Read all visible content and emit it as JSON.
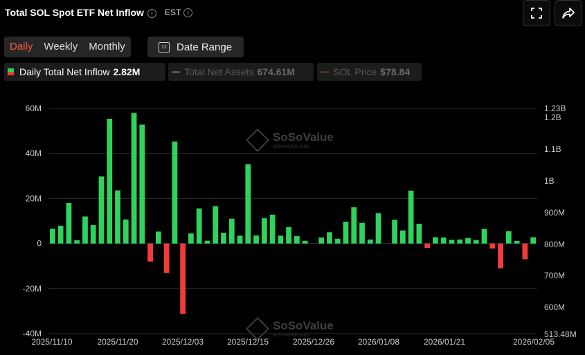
{
  "header": {
    "title": "Total SOL Spot ETF Net Inflow",
    "timezone": "EST",
    "info_glyph": "i"
  },
  "toolbar": {
    "tabs": [
      {
        "label": "Daily",
        "active": true
      },
      {
        "label": "Weekly",
        "active": false
      },
      {
        "label": "Monthly",
        "active": false
      }
    ],
    "date_range_label": "Date Range",
    "calendar_day": "12"
  },
  "legend": {
    "inflow": {
      "label": "Daily Total Net Inflow",
      "value": "2.82M"
    },
    "assets": {
      "label": "Total Net Assets",
      "value": "674.61M"
    },
    "price": {
      "label": "SOL Price",
      "value": "$78.84"
    }
  },
  "watermark": {
    "brand": "SoSoValue",
    "site": "sosovalue.com"
  },
  "colors": {
    "positive": "#2fd35b",
    "negative": "#f23b3b",
    "accent": "#f25b46",
    "grid": "#2b2b2b"
  },
  "chart_data": {
    "type": "bar",
    "left_axis": {
      "ticks": [
        "60M",
        "40M",
        "20M",
        "0",
        "-20M",
        "-40M"
      ],
      "range": [
        -40000000,
        60000000
      ]
    },
    "right_axis": {
      "ticks": [
        "1.23B",
        "1.2B",
        "1.1B",
        "1B",
        "900M",
        "800M",
        "700M",
        "600M",
        "513.48M"
      ]
    },
    "x_tick_labels": [
      "2025/11/10",
      "2025/11/20",
      "2025/12/03",
      "2025/12/15",
      "2025/12/26",
      "2026/01/08",
      "2026/01/21",
      "2026/02/05"
    ],
    "series": [
      {
        "name": "Daily Total Net Inflow",
        "values": [
          6.6,
          7.9,
          18,
          1.5,
          12,
          8.2,
          29.8,
          55.4,
          23.6,
          10.7,
          58,
          52.8,
          -8,
          5.3,
          -13,
          45.3,
          -31.3,
          4.5,
          15.6,
          1.2,
          16.6,
          4.8,
          11,
          3.5,
          35.2,
          3.6,
          11.2,
          12.8,
          3.5,
          7.3,
          3.3,
          1.2,
          null,
          2.7,
          5,
          2.1,
          9.7,
          16.1,
          9.2,
          1.8,
          13.5,
          null,
          10.6,
          5.8,
          23.5,
          8.8,
          -2,
          2.8,
          2.7,
          1.7,
          1.8,
          2.5,
          1.6,
          6.5,
          -2.2,
          -11,
          5.5,
          1.1,
          -7,
          2.8
        ],
        "unit": "M"
      }
    ]
  }
}
